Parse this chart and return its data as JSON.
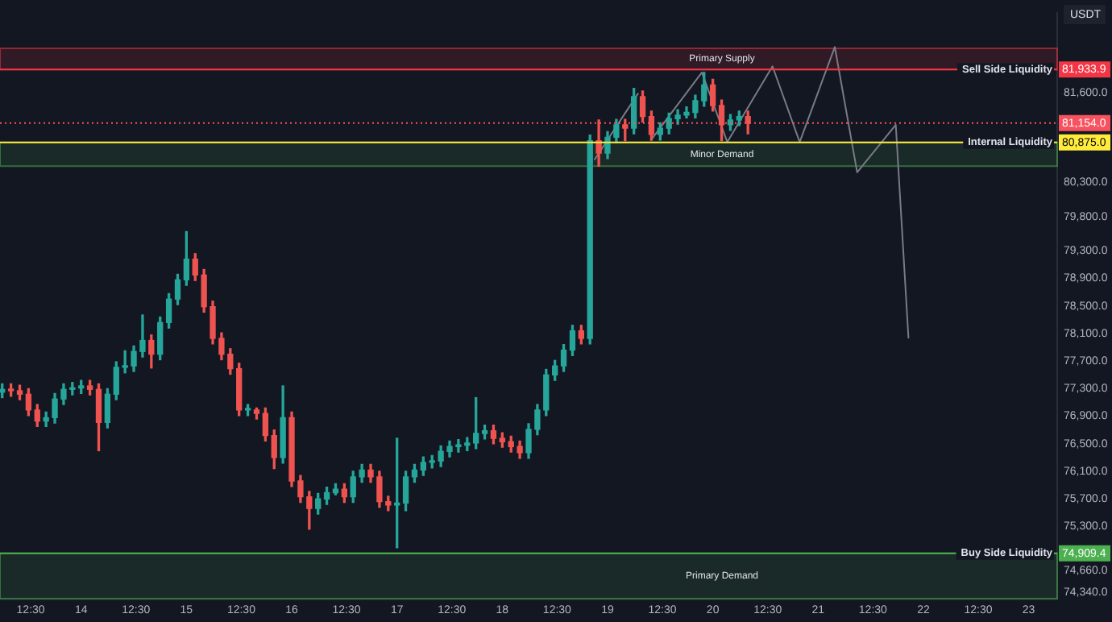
{
  "chart_data": {
    "type": "candlestick",
    "ylabel": "USDT",
    "x": [
      "--01-13T06:00",
      "--01-13T08:00",
      "--01-13T10:00",
      "--01-13T12:00",
      "--01-13T14:00",
      "--01-13T16:00",
      "--01-13T18:00",
      "--01-13T20:00",
      "--01-13T22:00",
      "--01-14T00:00",
      "--01-14T02:00",
      "--01-14T04:00",
      "--01-14T06:00",
      "--01-14T08:00",
      "--01-14T10:00",
      "--01-14T12:00",
      "--01-14T14:00",
      "--01-14T16:00",
      "--01-14T18:00",
      "--01-14T20:00",
      "--01-14T22:00",
      "--01-15T00:00",
      "--01-15T02:00",
      "--01-15T04:00",
      "--01-15T06:00",
      "--01-15T08:00",
      "--01-15T10:00",
      "--01-15T12:00",
      "--01-15T14:00",
      "--01-15T16:00",
      "--01-15T18:00",
      "--01-15T20:00",
      "--01-15T22:00",
      "--01-16T00:00",
      "--01-16T02:00",
      "--01-16T04:00",
      "--01-16T06:00",
      "--01-16T08:00",
      "--01-16T10:00",
      "--01-16T12:00",
      "--01-16T14:00",
      "--01-16T16:00",
      "--01-16T18:00",
      "--01-16T20:00",
      "--01-16T22:00",
      "--01-17T00:00",
      "--01-17T02:00",
      "--01-17T04:00",
      "--01-17T06:00",
      "--01-17T08:00",
      "--01-17T10:00",
      "--01-17T12:00",
      "--01-17T14:00",
      "--01-17T16:00",
      "--01-17T18:00",
      "--01-17T20:00",
      "--01-17T22:00",
      "--01-18T00:00",
      "--01-18T02:00",
      "--01-18T04:00",
      "--01-18T06:00",
      "--01-18T08:00",
      "--01-18T10:00",
      "--01-18T12:00",
      "--01-18T14:00",
      "--01-18T16:00",
      "--01-18T18:00",
      "--01-18T20:00",
      "--01-18T22:00",
      "--01-19T00:00",
      "--01-19T02:00",
      "--01-19T04:00",
      "--01-19T06:00",
      "--01-19T08:00",
      "--01-19T10:00",
      "--01-19T12:00",
      "--01-19T14:00",
      "--01-19T16:00",
      "--01-19T18:00",
      "--01-19T20:00",
      "--01-19T22:00",
      "--01-20T00:00",
      "--01-20T02:00",
      "--01-20T04:00",
      "--01-20T06:00",
      "--01-20T08:00"
    ],
    "ohlc": [
      [
        77250,
        77370,
        77170,
        77290
      ],
      [
        77290,
        77370,
        77190,
        77270
      ],
      [
        77270,
        77350,
        77140,
        77220
      ],
      [
        77220,
        77300,
        76910,
        76990
      ],
      [
        76990,
        77070,
        76750,
        76830
      ],
      [
        76830,
        76960,
        76750,
        76880
      ],
      [
        76880,
        77230,
        76800,
        77150
      ],
      [
        77150,
        77370,
        77070,
        77290
      ],
      [
        77290,
        77390,
        77210,
        77310
      ],
      [
        77310,
        77420,
        77230,
        77340
      ],
      [
        77340,
        77420,
        77210,
        77290
      ],
      [
        77290,
        77370,
        76400,
        76810
      ],
      [
        76810,
        77300,
        76730,
        77220
      ],
      [
        77220,
        77690,
        77140,
        77610
      ],
      [
        77610,
        77850,
        77530,
        77630
      ],
      [
        77630,
        77920,
        77550,
        77840
      ],
      [
        77840,
        78370,
        77760,
        78000
      ],
      [
        78000,
        78080,
        77600,
        77800
      ],
      [
        77800,
        78340,
        77720,
        78260
      ],
      [
        78260,
        78680,
        78180,
        78600
      ],
      [
        78600,
        78960,
        78520,
        78880
      ],
      [
        78880,
        79580,
        78800,
        79180
      ],
      [
        79180,
        79260,
        78870,
        78950
      ],
      [
        78950,
        79030,
        78410,
        78490
      ],
      [
        78490,
        78570,
        77950,
        78030
      ],
      [
        78030,
        78110,
        77720,
        77800
      ],
      [
        77800,
        77880,
        77510,
        77590
      ],
      [
        77590,
        77670,
        76910,
        76990
      ],
      [
        76990,
        77070,
        76910,
        76990
      ],
      [
        76990,
        77020,
        76860,
        76940
      ],
      [
        76940,
        77020,
        76540,
        76620
      ],
      [
        76620,
        76700,
        76140,
        76300
      ],
      [
        76300,
        77340,
        76220,
        76880
      ],
      [
        76880,
        76960,
        75880,
        75960
      ],
      [
        75960,
        76040,
        75650,
        75730
      ],
      [
        75730,
        75810,
        75260,
        75560
      ],
      [
        75560,
        75780,
        75480,
        75700
      ],
      [
        75700,
        75870,
        75620,
        75790
      ],
      [
        75790,
        75920,
        75760,
        75840
      ],
      [
        75840,
        75920,
        75650,
        75730
      ],
      [
        75730,
        76100,
        75650,
        76020
      ],
      [
        76020,
        76200,
        75940,
        76120
      ],
      [
        76120,
        76200,
        75940,
        76020
      ],
      [
        76020,
        76100,
        75580,
        75660
      ],
      [
        75660,
        75740,
        75530,
        75610
      ],
      [
        75610,
        76580,
        74990,
        75640
      ],
      [
        75640,
        76100,
        75530,
        76020
      ],
      [
        76020,
        76200,
        75940,
        76120
      ],
      [
        76120,
        76310,
        76040,
        76230
      ],
      [
        76230,
        76330,
        76150,
        76250
      ],
      [
        76250,
        76470,
        76170,
        76390
      ],
      [
        76390,
        76540,
        76310,
        76460
      ],
      [
        76460,
        76560,
        76380,
        76480
      ],
      [
        76480,
        76590,
        76400,
        76510
      ],
      [
        76510,
        77170,
        76430,
        76650
      ],
      [
        76650,
        76770,
        76570,
        76690
      ],
      [
        76690,
        76770,
        76500,
        76580
      ],
      [
        76580,
        76660,
        76450,
        76530
      ],
      [
        76530,
        76610,
        76380,
        76460
      ],
      [
        76460,
        76540,
        76290,
        76370
      ],
      [
        76370,
        76790,
        76290,
        76710
      ],
      [
        76710,
        77070,
        76630,
        76990
      ],
      [
        76990,
        77580,
        76910,
        77500
      ],
      [
        77500,
        77710,
        77420,
        77630
      ],
      [
        77630,
        77940,
        77550,
        77860
      ],
      [
        77860,
        78220,
        77780,
        78140
      ],
      [
        78140,
        78220,
        77950,
        78030
      ],
      [
        78030,
        80980,
        77950,
        80900
      ],
      [
        80900,
        81200,
        80530,
        80720
      ],
      [
        80720,
        81030,
        80640,
        80950
      ],
      [
        80950,
        81210,
        80870,
        81130
      ],
      [
        81130,
        81210,
        80900,
        81080
      ],
      [
        81080,
        81660,
        81000,
        81540
      ],
      [
        81540,
        81620,
        81170,
        81250
      ],
      [
        81250,
        81330,
        80910,
        80990
      ],
      [
        80990,
        81160,
        80910,
        81080
      ],
      [
        81080,
        81300,
        81000,
        81220
      ],
      [
        81220,
        81350,
        81140,
        81270
      ],
      [
        81270,
        81390,
        81230,
        81310
      ],
      [
        81310,
        81560,
        81230,
        81480
      ],
      [
        81480,
        81890,
        81400,
        81710
      ],
      [
        81710,
        81790,
        81330,
        81410
      ],
      [
        81410,
        81490,
        80900,
        81130
      ],
      [
        81130,
        81280,
        81050,
        81200
      ],
      [
        81200,
        81330,
        81120,
        81250
      ],
      [
        81250,
        81330,
        81000,
        81154
      ]
    ],
    "series": [
      {
        "type": "line",
        "color": "#787b86",
        "x": [
          "--01-18T21:00",
          "--01-19T07:00",
          "--01-19T08:24",
          "--01-19T09:48",
          "--01-19T21:30",
          "--01-20T03:18",
          "--01-20T13:36",
          "--01-20T19:48",
          "--01-21T03:48",
          "--01-21T08:54",
          "--01-21T17:42",
          "--01-21T20:36"
        ],
        "values": [
          80620,
          81590,
          null,
          80900,
          81890,
          80880,
          81980,
          80880,
          82260,
          80440,
          81130,
          78030
        ]
      }
    ],
    "xlim": [
      "--01-13T05:30",
      "--01-23T06:30"
    ],
    "xticks": [
      {
        "value": "--01-13T12:30",
        "label": "12:30"
      },
      {
        "value": "--01-14",
        "label": "14"
      },
      {
        "value": "--01-14T12:30",
        "label": "12:30"
      },
      {
        "value": "--01-15",
        "label": "15"
      },
      {
        "value": "--01-15T12:30",
        "label": "12:30"
      },
      {
        "value": "--01-16",
        "label": "16"
      },
      {
        "value": "--01-16T12:30",
        "label": "12:30"
      },
      {
        "value": "--01-17",
        "label": "17"
      },
      {
        "value": "--01-17T12:30",
        "label": "12:30"
      },
      {
        "value": "--01-18",
        "label": "18"
      },
      {
        "value": "--01-18T12:30",
        "label": "12:30"
      },
      {
        "value": "--01-19",
        "label": "19"
      },
      {
        "value": "--01-19T12:30",
        "label": "12:30"
      },
      {
        "value": "--01-20",
        "label": "20"
      },
      {
        "value": "--01-20T12:30",
        "label": "12:30"
      },
      {
        "value": "--01-21",
        "label": "21"
      },
      {
        "value": "--01-21T12:30",
        "label": "12:30"
      },
      {
        "value": "--01-22",
        "label": "22"
      },
      {
        "value": "--01-22T12:30",
        "label": "12:30"
      },
      {
        "value": "--01-23",
        "label": "23"
      }
    ],
    "ylim": [
      74250,
      82750
    ],
    "yticks": [
      {
        "value": 74340,
        "label": "74,340.0"
      },
      {
        "value": 74660,
        "label": "74,660.0"
      },
      {
        "value": 75300,
        "label": "75,300.0"
      },
      {
        "value": 75700,
        "label": "75,700.0"
      },
      {
        "value": 76100,
        "label": "76,100.0"
      },
      {
        "value": 76500,
        "label": "76,500.0"
      },
      {
        "value": 76900,
        "label": "76,900.0"
      },
      {
        "value": 77300,
        "label": "77,300.0"
      },
      {
        "value": 77700,
        "label": "77,700.0"
      },
      {
        "value": 78100,
        "label": "78,100.0"
      },
      {
        "value": 78500,
        "label": "78,500.0"
      },
      {
        "value": 78900,
        "label": "78,900.0"
      },
      {
        "value": 79300,
        "label": "79,300.0"
      },
      {
        "value": 79800,
        "label": "79,800.0"
      },
      {
        "value": 80300,
        "label": "80,300.0"
      },
      {
        "value": 81600,
        "label": "81,600.0"
      }
    ],
    "ref_lines": [
      {
        "axis": "y",
        "value": 81933.9,
        "label": "Sell Side Liquidity",
        "color": "#f23645"
      },
      {
        "axis": "y",
        "value": 80875,
        "label": "Internal Liquidity",
        "color": "#ffeb3b"
      },
      {
        "axis": "y",
        "value": 74909.4,
        "label": "Buy Side Liquidity",
        "color": "#4caf50"
      },
      {
        "axis": "y",
        "value": 81154,
        "color": "#f7525f",
        "line_style": "dotted"
      }
    ],
    "bands": [
      {
        "axis": "y",
        "from": 81933.9,
        "to": 82240,
        "label": "Primary Supply",
        "color": "#f23645"
      },
      {
        "axis": "y",
        "from": 80530,
        "to": 80875,
        "label": "Minor Demand",
        "color": "#4caf50"
      },
      {
        "axis": "y",
        "from": 74250,
        "to": 74909.4,
        "label": "Primary Demand",
        "color": "#4caf50"
      }
    ],
    "annotations": [
      {
        "text": "81,933.9",
        "y": 81933.9
      },
      {
        "text": "81,154.0",
        "y": 81154
      },
      {
        "text": "80,875.0",
        "y": 80875
      },
      {
        "text": "74,909.4",
        "y": 74909.4
      }
    ]
  }
}
